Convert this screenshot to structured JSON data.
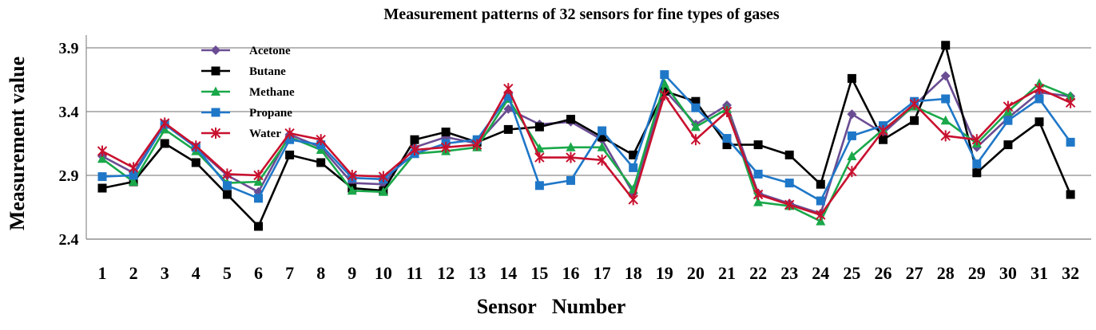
{
  "chart_data": {
    "type": "line",
    "title": "Measurement patterns of 32 sensors for fine types of gases",
    "xlabel": "Sensor   Number",
    "ylabel": "Measurement value",
    "categories": [
      "1",
      "2",
      "3",
      "4",
      "5",
      "6",
      "7",
      "8",
      "9",
      "10",
      "11",
      "12",
      "13",
      "14",
      "15",
      "16",
      "17",
      "18",
      "19",
      "20",
      "21",
      "22",
      "23",
      "24",
      "25",
      "26",
      "27",
      "28",
      "29",
      "30",
      "31",
      "32"
    ],
    "ylim": [
      2.4,
      4.0
    ],
    "yticks": [
      2.4,
      2.9,
      3.4,
      3.9
    ],
    "ytick_labels": [
      "2.4",
      "2.9",
      "3.4",
      "3.9"
    ],
    "grid": true,
    "legend_position": "top-left",
    "series": [
      {
        "name": "Acetone",
        "color": "#6a4c93",
        "marker": "diamond",
        "values": [
          3.05,
          2.92,
          3.3,
          3.12,
          2.9,
          2.77,
          3.22,
          3.12,
          2.84,
          2.83,
          3.12,
          3.2,
          3.15,
          3.42,
          3.3,
          3.32,
          3.18,
          2.76,
          3.57,
          3.3,
          3.45,
          2.76,
          2.68,
          2.6,
          3.38,
          3.23,
          3.45,
          3.68,
          3.12,
          3.35,
          3.55,
          3.52
        ]
      },
      {
        "name": "Butane",
        "color": "#000000",
        "marker": "square",
        "values": [
          2.8,
          2.85,
          3.15,
          3.0,
          2.75,
          2.5,
          3.06,
          3.0,
          2.8,
          2.78,
          3.18,
          3.24,
          3.16,
          3.26,
          3.28,
          3.34,
          3.2,
          3.06,
          3.56,
          3.48,
          3.14,
          3.14,
          3.06,
          2.83,
          3.66,
          3.18,
          3.33,
          3.92,
          2.92,
          3.14,
          3.32,
          2.75
        ]
      },
      {
        "name": "Methane",
        "color": "#1aa84a",
        "marker": "triangle",
        "values": [
          3.03,
          2.85,
          3.26,
          3.09,
          2.84,
          2.85,
          3.2,
          3.1,
          2.78,
          2.77,
          3.07,
          3.09,
          3.12,
          3.5,
          3.11,
          3.12,
          3.12,
          2.79,
          3.62,
          3.28,
          3.42,
          2.69,
          2.66,
          2.54,
          3.05,
          3.26,
          3.44,
          3.33,
          3.15,
          3.4,
          3.62,
          3.52
        ]
      },
      {
        "name": "Propane",
        "color": "#1f77c8",
        "marker": "square",
        "values": [
          2.89,
          2.9,
          3.3,
          3.12,
          2.82,
          2.72,
          3.18,
          3.14,
          2.88,
          2.87,
          3.07,
          3.15,
          3.18,
          3.52,
          2.82,
          2.86,
          3.25,
          2.96,
          3.69,
          3.43,
          3.19,
          2.91,
          2.84,
          2.7,
          3.21,
          3.29,
          3.48,
          3.5,
          2.99,
          3.33,
          3.5,
          3.16
        ]
      },
      {
        "name": "Water",
        "color": "#c8102e",
        "marker": "x",
        "values": [
          3.09,
          2.96,
          3.31,
          3.13,
          2.91,
          2.9,
          3.23,
          3.18,
          2.9,
          2.89,
          3.1,
          3.12,
          3.14,
          3.58,
          3.04,
          3.04,
          3.02,
          2.71,
          3.53,
          3.18,
          3.4,
          2.75,
          2.67,
          2.59,
          2.93,
          3.25,
          3.46,
          3.21,
          3.18,
          3.44,
          3.58,
          3.47
        ]
      }
    ]
  }
}
